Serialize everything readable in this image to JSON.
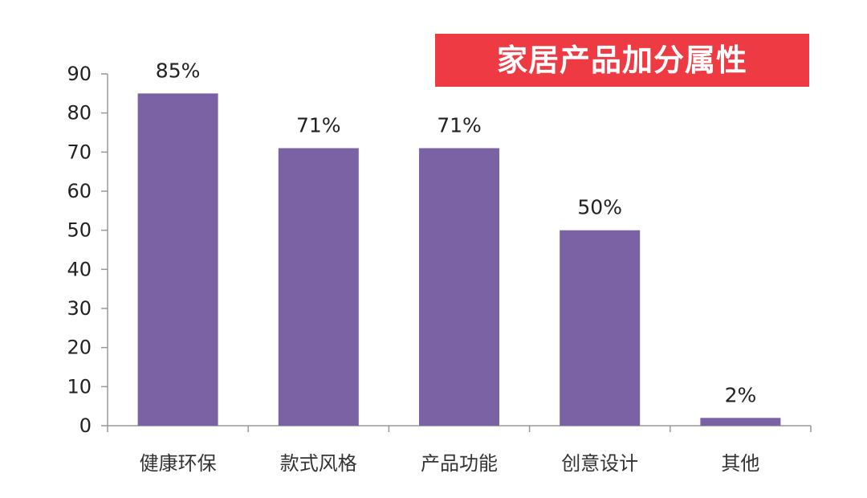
{
  "chart_data": {
    "type": "bar",
    "title": "家居产品加分属性",
    "categories": [
      "健康环保",
      "款式风格",
      "产品功能",
      "创意设计",
      "其他"
    ],
    "values": [
      85,
      71,
      71,
      50,
      2
    ],
    "data_labels": [
      "85%",
      "71%",
      "71%",
      "50%",
      "2%"
    ],
    "ylim": [
      0,
      90
    ],
    "yticks": [
      0,
      10,
      20,
      30,
      40,
      50,
      60,
      70,
      80,
      90
    ],
    "xlabel": "",
    "ylabel": "",
    "grid": false,
    "legend": "none",
    "colors": {
      "bar": "#7b62a4",
      "title_bg": "#ee3a43",
      "axis": "#999999"
    }
  }
}
